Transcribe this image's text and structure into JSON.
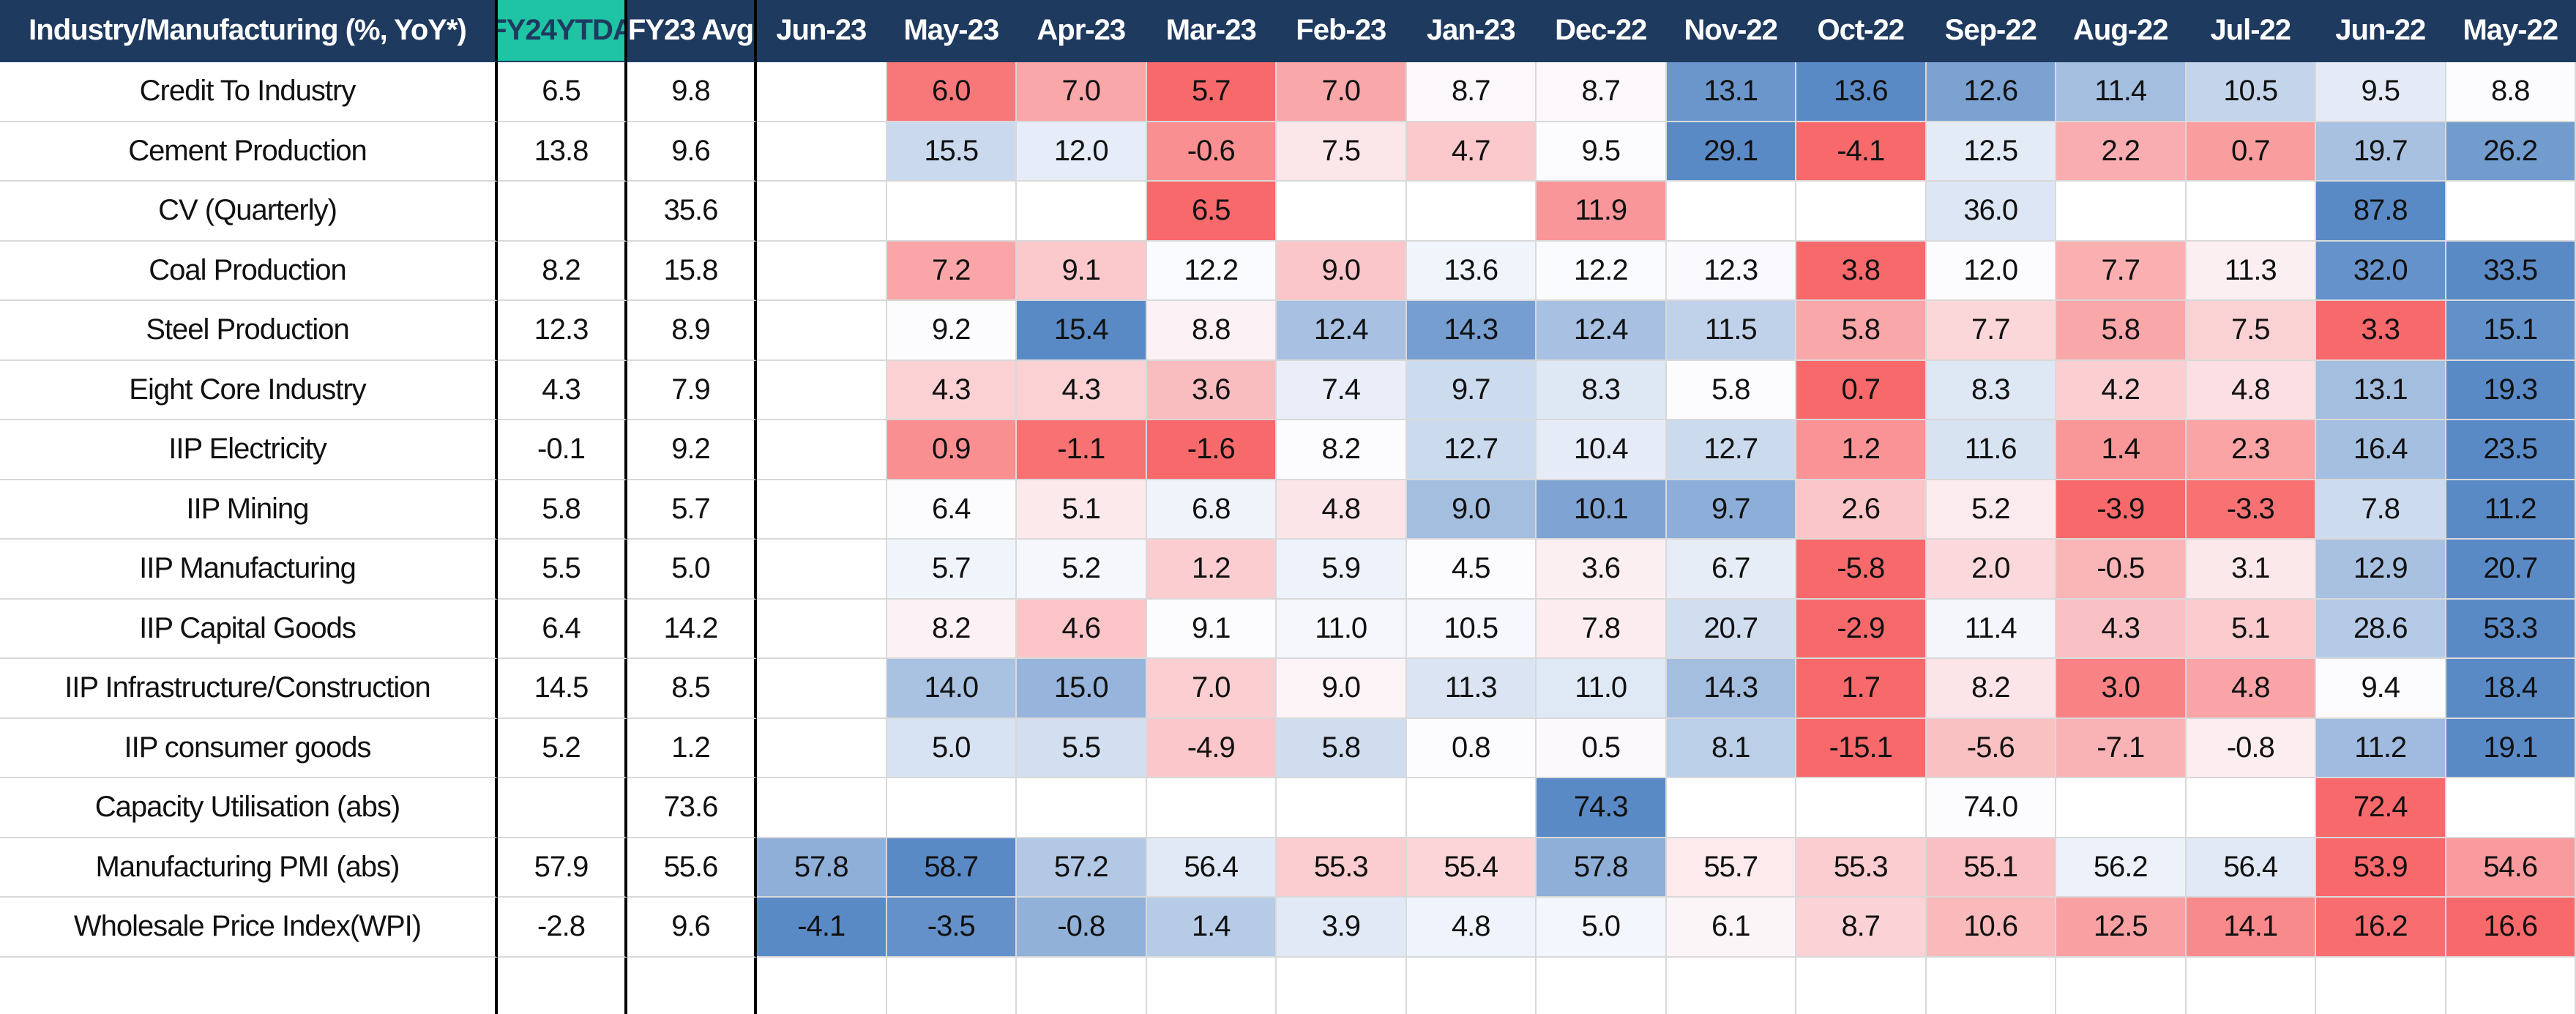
{
  "table": {
    "columns": [
      "Industry/Manufacturing (%, YoY*)",
      "FY24YTDA",
      "FY23 Avg",
      "Jun-23",
      "May-23",
      "Apr-23",
      "Mar-23",
      "Feb-23",
      "Jan-23",
      "Dec-22",
      "Nov-22",
      "Oct-22",
      "Sep-22",
      "Aug-22",
      "Jul-22",
      "Jun-22",
      "May-22"
    ],
    "scale_colors": [
      "#f8696b",
      "#fcfcff",
      "#5a8ac6"
    ],
    "rows": [
      {
        "label": "Credit To Industry",
        "values": [
          "6.5",
          "9.8",
          null,
          "6.0",
          "7.0",
          "5.7",
          "7.0",
          "8.7",
          "8.7",
          "13.1",
          "13.6",
          "12.6",
          "11.4",
          "10.5",
          "9.5",
          "8.8"
        ]
      },
      {
        "label": "Cement Production",
        "values": [
          "13.8",
          "9.6",
          null,
          "15.5",
          "12.0",
          "-0.6",
          "7.5",
          "4.7",
          "9.5",
          "29.1",
          "-4.1",
          "12.5",
          "2.2",
          "0.7",
          "19.7",
          "26.2"
        ]
      },
      {
        "label": "CV (Quarterly)",
        "values": [
          null,
          "35.6",
          null,
          null,
          null,
          "6.5",
          null,
          null,
          "11.9",
          null,
          null,
          "36.0",
          null,
          null,
          "87.8",
          null
        ]
      },
      {
        "label": "Coal Production",
        "values": [
          "8.2",
          "15.8",
          null,
          "7.2",
          "9.1",
          "12.2",
          "9.0",
          "13.6",
          "12.2",
          "12.3",
          "3.8",
          "12.0",
          "7.7",
          "11.3",
          "32.0",
          "33.5"
        ]
      },
      {
        "label": "Steel Production",
        "values": [
          "12.3",
          "8.9",
          null,
          "9.2",
          "15.4",
          "8.8",
          "12.4",
          "14.3",
          "12.4",
          "11.5",
          "5.8",
          "7.7",
          "5.8",
          "7.5",
          "3.3",
          "15.1"
        ]
      },
      {
        "label": "Eight Core Industry",
        "values": [
          "4.3",
          "7.9",
          null,
          "4.3",
          "4.3",
          "3.6",
          "7.4",
          "9.7",
          "8.3",
          "5.8",
          "0.7",
          "8.3",
          "4.2",
          "4.8",
          "13.1",
          "19.3"
        ]
      },
      {
        "label": "IIP Electricity",
        "values": [
          "-0.1",
          "9.2",
          null,
          "0.9",
          "-1.1",
          "-1.6",
          "8.2",
          "12.7",
          "10.4",
          "12.7",
          "1.2",
          "11.6",
          "1.4",
          "2.3",
          "16.4",
          "23.5"
        ]
      },
      {
        "label": "IIP Mining",
        "values": [
          "5.8",
          "5.7",
          null,
          "6.4",
          "5.1",
          "6.8",
          "4.8",
          "9.0",
          "10.1",
          "9.7",
          "2.6",
          "5.2",
          "-3.9",
          "-3.3",
          "7.8",
          "11.2"
        ]
      },
      {
        "label": "IIP Manufacturing",
        "values": [
          "5.5",
          "5.0",
          null,
          "5.7",
          "5.2",
          "1.2",
          "5.9",
          "4.5",
          "3.6",
          "6.7",
          "-5.8",
          "2.0",
          "-0.5",
          "3.1",
          "12.9",
          "20.7"
        ]
      },
      {
        "label": "IIP Capital Goods",
        "values": [
          "6.4",
          "14.2",
          null,
          "8.2",
          "4.6",
          "9.1",
          "11.0",
          "10.5",
          "7.8",
          "20.7",
          "-2.9",
          "11.4",
          "4.3",
          "5.1",
          "28.6",
          "53.3"
        ]
      },
      {
        "label": "IIP Infrastructure/Construction",
        "values": [
          "14.5",
          "8.5",
          null,
          "14.0",
          "15.0",
          "7.0",
          "9.0",
          "11.3",
          "11.0",
          "14.3",
          "1.7",
          "8.2",
          "3.0",
          "4.8",
          "9.4",
          "18.4"
        ]
      },
      {
        "label": "IIP consumer goods",
        "values": [
          "5.2",
          "1.2",
          null,
          "5.0",
          "5.5",
          "-4.9",
          "5.8",
          "0.8",
          "0.5",
          "8.1",
          "-15.1",
          "-5.6",
          "-7.1",
          "-0.8",
          "11.2",
          "19.1"
        ]
      },
      {
        "label": "Capacity Utilisation (abs)",
        "values": [
          null,
          "73.6",
          null,
          null,
          null,
          null,
          null,
          null,
          "74.3",
          null,
          null,
          "74.0",
          null,
          null,
          "72.4",
          null
        ]
      },
      {
        "label": "Manufacturing PMI (abs)",
        "values": [
          "57.9",
          "55.6",
          "57.8",
          "58.7",
          "57.2",
          "56.4",
          "55.3",
          "55.4",
          "57.8",
          "55.7",
          "55.3",
          "55.1",
          "56.2",
          "56.4",
          "53.9",
          "54.6"
        ]
      },
      {
        "label": "Wholesale Price Index(WPI)",
        "values": [
          "-2.8",
          "9.6",
          "-4.1",
          "-3.5",
          "-0.8",
          "1.4",
          "3.9",
          "4.8",
          "5.0",
          "6.1",
          "8.7",
          "10.6",
          "12.5",
          "14.1",
          "16.2",
          "16.6"
        ],
        "scale_colors": [
          "#5a8ac6",
          "#fcfcff",
          "#f8696b"
        ]
      }
    ]
  }
}
